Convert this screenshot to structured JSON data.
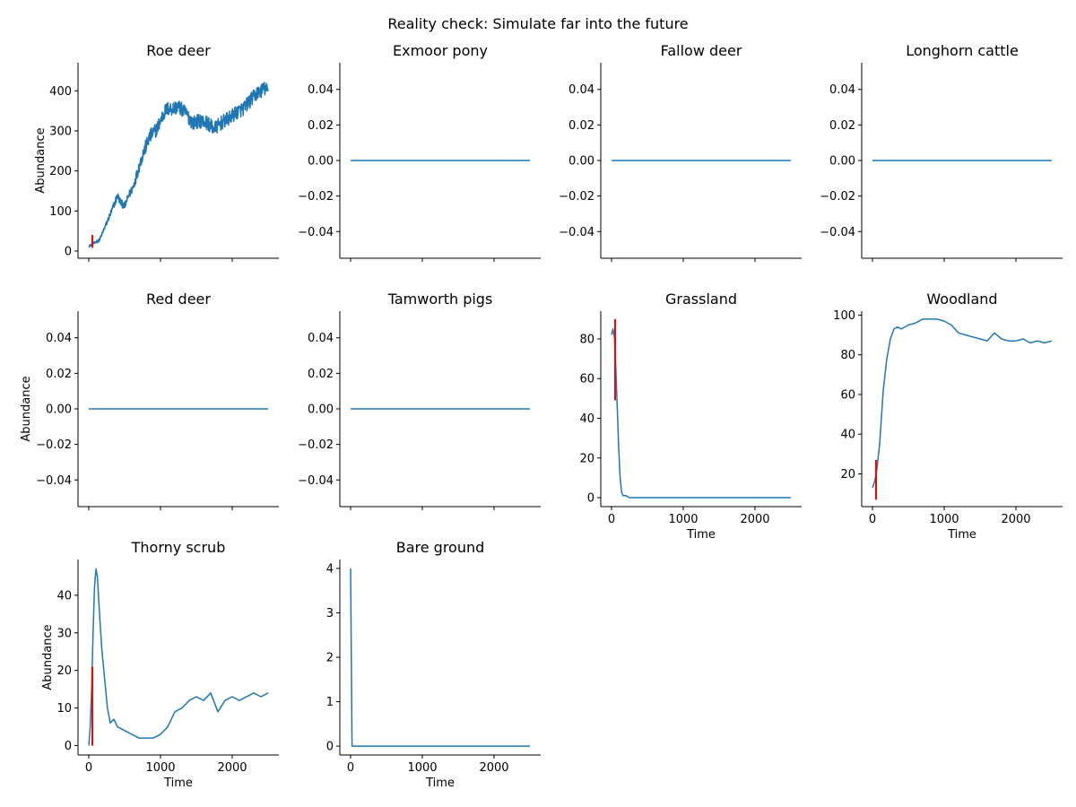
{
  "figure": {
    "suptitle": "Reality check: Simulate far into the future"
  },
  "colors": {
    "series": "#1f77b4",
    "marker": "#ff0000"
  },
  "chart_data": [
    {
      "type": "line",
      "title": "Roe deer",
      "xlabel": "",
      "ylabel": "Abundance",
      "xlim": [
        -150,
        2650
      ],
      "ylim": [
        -18,
        470
      ],
      "xticks": [
        0,
        1000,
        2000
      ],
      "show_xticklabels": false,
      "yticks": [
        0,
        100,
        200,
        300,
        400
      ],
      "ytick_labels": [
        "0",
        "100",
        "200",
        "300",
        "400"
      ],
      "noise": 18,
      "series": [
        {
          "x": [
            0,
            60,
            150,
            250,
            330,
            400,
            450,
            500,
            560,
            620,
            700,
            760,
            850,
            950,
            1050,
            1090,
            1150,
            1250,
            1350,
            1450,
            1550,
            1650,
            1750,
            1850,
            1950,
            2050,
            2150,
            2250,
            2350,
            2450,
            2500
          ],
          "y": [
            12,
            18,
            28,
            70,
            105,
            138,
            120,
            112,
            140,
            160,
            210,
            245,
            285,
            305,
            345,
            355,
            355,
            360,
            345,
            320,
            325,
            320,
            305,
            320,
            330,
            345,
            355,
            375,
            395,
            405,
            400
          ]
        }
      ],
      "markers": [
        {
          "x": 50,
          "y1": 8,
          "y2": 40
        }
      ],
      "grid": false,
      "legend": "none"
    },
    {
      "type": "line",
      "title": "Exmoor pony",
      "xlabel": "",
      "ylabel": "",
      "xlim": [
        -150,
        2650
      ],
      "ylim": [
        -0.055,
        0.055
      ],
      "xticks": [
        0,
        1000,
        2000
      ],
      "show_xticklabels": false,
      "yticks": [
        -0.04,
        -0.02,
        0,
        0.02,
        0.04
      ],
      "ytick_labels": [
        "−0.04",
        "−0.02",
        "0.00",
        "0.02",
        "0.04"
      ],
      "noise": 0,
      "series": [
        {
          "x": [
            0,
            2500
          ],
          "y": [
            0,
            0
          ]
        }
      ],
      "markers": [],
      "grid": false,
      "legend": "none"
    },
    {
      "type": "line",
      "title": "Fallow deer",
      "xlabel": "",
      "ylabel": "",
      "xlim": [
        -150,
        2650
      ],
      "ylim": [
        -0.055,
        0.055
      ],
      "xticks": [
        0,
        1000,
        2000
      ],
      "show_xticklabels": false,
      "yticks": [
        -0.04,
        -0.02,
        0,
        0.02,
        0.04
      ],
      "ytick_labels": [
        "−0.04",
        "−0.02",
        "0.00",
        "0.02",
        "0.04"
      ],
      "noise": 0,
      "series": [
        {
          "x": [
            0,
            2500
          ],
          "y": [
            0,
            0
          ]
        }
      ],
      "markers": [],
      "grid": false,
      "legend": "none"
    },
    {
      "type": "line",
      "title": "Longhorn cattle",
      "xlabel": "",
      "ylabel": "",
      "xlim": [
        -150,
        2650
      ],
      "ylim": [
        -0.055,
        0.055
      ],
      "xticks": [
        0,
        1000,
        2000
      ],
      "show_xticklabels": false,
      "yticks": [
        -0.04,
        -0.02,
        0,
        0.02,
        0.04
      ],
      "ytick_labels": [
        "−0.04",
        "−0.02",
        "0.00",
        "0.02",
        "0.04"
      ],
      "noise": 0,
      "series": [
        {
          "x": [
            0,
            2500
          ],
          "y": [
            0,
            0
          ]
        }
      ],
      "markers": [],
      "grid": false,
      "legend": "none"
    },
    {
      "type": "line",
      "title": "Red deer",
      "xlabel": "",
      "ylabel": "Abundance",
      "xlim": [
        -150,
        2650
      ],
      "ylim": [
        -0.055,
        0.055
      ],
      "xticks": [
        0,
        1000,
        2000
      ],
      "show_xticklabels": false,
      "yticks": [
        -0.04,
        -0.02,
        0,
        0.02,
        0.04
      ],
      "ytick_labels": [
        "−0.04",
        "−0.02",
        "0.00",
        "0.02",
        "0.04"
      ],
      "noise": 0,
      "series": [
        {
          "x": [
            0,
            2500
          ],
          "y": [
            0,
            0
          ]
        }
      ],
      "markers": [],
      "grid": false,
      "legend": "none"
    },
    {
      "type": "line",
      "title": "Tamworth pigs",
      "xlabel": "",
      "ylabel": "",
      "xlim": [
        -150,
        2650
      ],
      "ylim": [
        -0.055,
        0.055
      ],
      "xticks": [
        0,
        1000,
        2000
      ],
      "show_xticklabels": false,
      "yticks": [
        -0.04,
        -0.02,
        0,
        0.02,
        0.04
      ],
      "ytick_labels": [
        "−0.04",
        "−0.02",
        "0.00",
        "0.02",
        "0.04"
      ],
      "noise": 0,
      "series": [
        {
          "x": [
            0,
            2500
          ],
          "y": [
            0,
            0
          ]
        }
      ],
      "markers": [],
      "grid": false,
      "legend": "none"
    },
    {
      "type": "line",
      "title": "Grassland",
      "xlabel": "Time",
      "ylabel": "",
      "xlim": [
        -150,
        2650
      ],
      "ylim": [
        -4.5,
        94
      ],
      "xticks": [
        0,
        1000,
        2000
      ],
      "show_xticklabels": true,
      "yticks": [
        0,
        20,
        40,
        60,
        80
      ],
      "ytick_labels": [
        "0",
        "20",
        "40",
        "60",
        "80"
      ],
      "noise": 0,
      "series": [
        {
          "x": [
            0,
            20,
            40,
            60,
            80,
            100,
            120,
            140,
            160,
            200,
            250,
            300,
            400,
            1000,
            2500
          ],
          "y": [
            82,
            85,
            81,
            65,
            45,
            25,
            10,
            3,
            1,
            1,
            0,
            0,
            0,
            0,
            0
          ]
        }
      ],
      "markers": [
        {
          "x": 50,
          "y1": 49,
          "y2": 90
        }
      ],
      "grid": false,
      "legend": "none"
    },
    {
      "type": "line",
      "title": "Woodland",
      "xlabel": "Time",
      "ylabel": "",
      "xlim": [
        -150,
        2650
      ],
      "ylim": [
        3.5,
        102
      ],
      "xticks": [
        0,
        1000,
        2000
      ],
      "show_xticklabels": true,
      "yticks": [
        20,
        40,
        60,
        80,
        100
      ],
      "ytick_labels": [
        "20",
        "40",
        "60",
        "80",
        "100"
      ],
      "noise": 0,
      "series": [
        {
          "x": [
            0,
            30,
            60,
            100,
            150,
            200,
            250,
            300,
            350,
            400,
            500,
            600,
            700,
            800,
            900,
            1000,
            1100,
            1200,
            1300,
            1400,
            1500,
            1600,
            1700,
            1800,
            1900,
            2000,
            2100,
            2200,
            2300,
            2400,
            2500
          ],
          "y": [
            13,
            16,
            22,
            35,
            62,
            78,
            88,
            93,
            94,
            93,
            95,
            96,
            98,
            98,
            98,
            97,
            95,
            91,
            90,
            89,
            88,
            87,
            91,
            88,
            87,
            87,
            88,
            86,
            87,
            86,
            87
          ]
        }
      ],
      "markers": [
        {
          "x": 50,
          "y1": 7,
          "y2": 27
        }
      ],
      "grid": false,
      "legend": "none"
    },
    {
      "type": "line",
      "title": "Thorny scrub",
      "xlabel": "Time",
      "ylabel": "Abundance",
      "xlim": [
        -150,
        2650
      ],
      "ylim": [
        -2.5,
        49.5
      ],
      "xticks": [
        0,
        1000,
        2000
      ],
      "show_xticklabels": true,
      "yticks": [
        0,
        10,
        20,
        30,
        40
      ],
      "ytick_labels": [
        "0",
        "10",
        "20",
        "30",
        "40"
      ],
      "noise": 0,
      "series": [
        {
          "x": [
            0,
            20,
            40,
            60,
            80,
            100,
            120,
            150,
            180,
            220,
            260,
            300,
            350,
            400,
            500,
            600,
            700,
            800,
            900,
            1000,
            1100,
            1200,
            1300,
            1400,
            1500,
            1600,
            1700,
            1800,
            1900,
            2000,
            2100,
            2200,
            2300,
            2400,
            2500
          ],
          "y": [
            0,
            5,
            15,
            30,
            42,
            47,
            45,
            35,
            26,
            18,
            10,
            6,
            7,
            5,
            4,
            3,
            2,
            2,
            2,
            3,
            5,
            9,
            10,
            12,
            13,
            12,
            14,
            9,
            12,
            13,
            12,
            13,
            14,
            13,
            14
          ]
        }
      ],
      "markers": [
        {
          "x": 50,
          "y1": 0,
          "y2": 21
        }
      ],
      "grid": false,
      "legend": "none"
    },
    {
      "type": "line",
      "title": "Bare ground",
      "xlabel": "Time",
      "ylabel": "",
      "xlim": [
        -150,
        2650
      ],
      "ylim": [
        -0.2,
        4.2
      ],
      "xticks": [
        0,
        1000,
        2000
      ],
      "show_xticklabels": true,
      "yticks": [
        0,
        1,
        2,
        3,
        4
      ],
      "ytick_labels": [
        "0",
        "1",
        "2",
        "3",
        "4"
      ],
      "noise": 0,
      "series": [
        {
          "x": [
            0,
            10,
            20,
            2500
          ],
          "y": [
            4,
            2,
            0,
            0
          ]
        }
      ],
      "markers": [],
      "grid": false,
      "legend": "none"
    }
  ]
}
